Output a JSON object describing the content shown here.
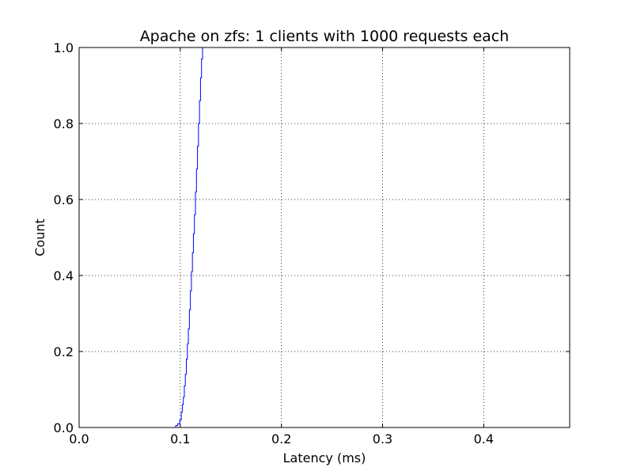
{
  "chart_data": {
    "type": "line",
    "title": "Apache on zfs: 1 clients with 1000 requests each",
    "xlabel": "Latency (ms)",
    "ylabel": "Count",
    "xlim": [
      0.0,
      0.485
    ],
    "ylim": [
      0.0,
      1.0
    ],
    "grid": true,
    "x_ticks": [
      "0.0",
      "0.1",
      "0.2",
      "0.3",
      "0.4"
    ],
    "x_tick_values": [
      0.0,
      0.1,
      0.2,
      0.3,
      0.4
    ],
    "y_ticks": [
      "0.0",
      "0.2",
      "0.4",
      "0.6",
      "0.8",
      "1.0"
    ],
    "y_tick_values": [
      0.0,
      0.2,
      0.4,
      0.6,
      0.8,
      1.0
    ],
    "series": [
      {
        "color": "#0000ff",
        "x": [
          0.0935,
          0.0955,
          0.0975,
          0.0995,
          0.101,
          0.102,
          0.103,
          0.104,
          0.105,
          0.106,
          0.107,
          0.108,
          0.109,
          0.11,
          0.111,
          0.112,
          0.113,
          0.114,
          0.115,
          0.116,
          0.117,
          0.118,
          0.119,
          0.12,
          0.121,
          0.122
        ],
        "y": [
          0.0,
          0.005,
          0.01,
          0.02,
          0.04,
          0.06,
          0.08,
          0.11,
          0.14,
          0.18,
          0.22,
          0.26,
          0.31,
          0.36,
          0.41,
          0.46,
          0.51,
          0.56,
          0.62,
          0.68,
          0.74,
          0.8,
          0.86,
          0.92,
          0.97,
          1.0
        ]
      }
    ]
  }
}
